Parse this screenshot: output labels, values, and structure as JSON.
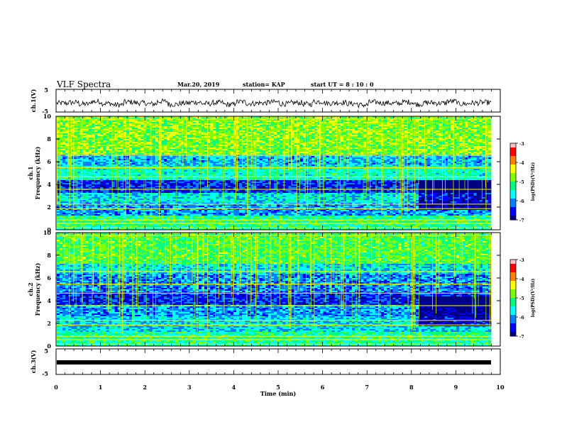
{
  "header": {
    "title": "VLF Spectra",
    "date": "Mar.20, 2019",
    "station": "station= KAP",
    "start_time": "start  UT =   8  : 10 : 0"
  },
  "colors": {
    "spectrogram_scale": [
      "#000080",
      "#0000ff",
      "#0080ff",
      "#00ffff",
      "#00ff80",
      "#80ff00",
      "#ffff00",
      "#ff8000",
      "#ff0000",
      "#ffc0c0"
    ],
    "waveform": "#000000",
    "axis": "#000000"
  },
  "chart_data": [
    {
      "type": "line",
      "ylabel": "ch.1(V)",
      "ylim": [
        -5,
        5
      ],
      "yticks": [
        "5",
        "-5"
      ],
      "xlim": [
        0,
        10
      ],
      "description_level": "noisy waveform around -1 V",
      "series": [
        {
          "values": [
            -1.1,
            -0.8,
            -1.5,
            -0.4,
            -1.2,
            -1.8,
            -0.6,
            -1.0,
            -1.4,
            -0.3,
            -1.6,
            -1.1,
            -0.7,
            -1.3,
            -0.9,
            -1.7,
            -0.5,
            -1.2,
            -1.0,
            -0.6,
            -1.4,
            -0.9,
            -1.5,
            -0.4,
            -1.1,
            -0.8,
            -1.3,
            -1.9,
            -0.7,
            -1.0,
            -1.2,
            -0.6,
            -1.5,
            -0.9,
            -1.1,
            -0.3,
            -1.4,
            -1.0,
            -0.8,
            -1.6
          ]
        }
      ]
    },
    {
      "type": "heatmap",
      "ylabel": "ch.1\nFrequency  (kHz)",
      "xlim": [
        0,
        10
      ],
      "ylim": [
        0,
        10
      ],
      "yticks": [
        "0",
        "2",
        "4",
        "6",
        "8",
        "10"
      ],
      "colorbar": {
        "label": "log(PSD)(V²/Hz)",
        "ticks": [
          "-3",
          "-4",
          "-5",
          "-6",
          "-7"
        ],
        "range": [
          -7,
          -3
        ]
      }
    },
    {
      "type": "heatmap",
      "ylabel": "ch.2\nFrequency  (kHz)",
      "xlim": [
        0,
        10
      ],
      "ylim": [
        0,
        10
      ],
      "yticks": [
        "0",
        "2",
        "4",
        "6",
        "8",
        "10"
      ],
      "colorbar": {
        "label": "log(PSD)(V²/Hz)",
        "ticks": [
          "-3",
          "-4",
          "-5",
          "-6",
          "-7"
        ],
        "range": [
          -7,
          -3
        ]
      }
    },
    {
      "type": "line",
      "ylabel": "ch.3(V)",
      "ylim": [
        -5,
        5
      ],
      "yticks": [
        "5",
        "-5"
      ],
      "xlim": [
        0,
        10
      ],
      "series": [
        {
          "values": [
            0,
            0
          ]
        }
      ]
    }
  ],
  "xaxis": {
    "label": "Time  (min)",
    "ticks": [
      "0",
      "1",
      "2",
      "3",
      "4",
      "5",
      "6",
      "7",
      "8",
      "9",
      "10"
    ]
  }
}
